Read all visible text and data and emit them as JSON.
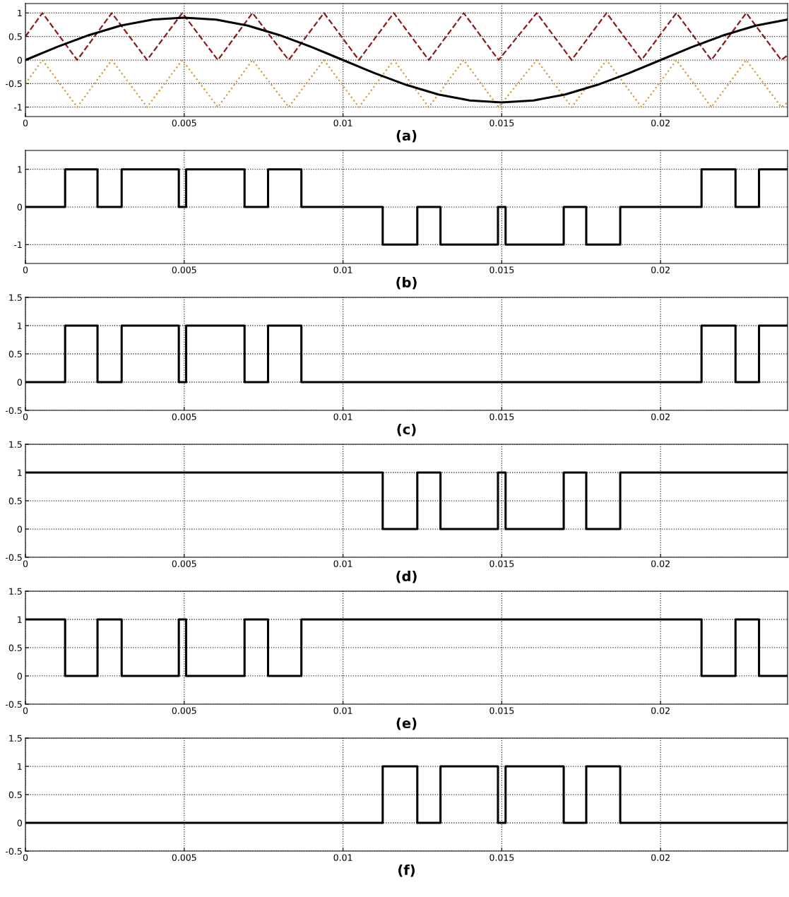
{
  "chart_data": [
    {
      "type": "line",
      "xlabel": "(a)",
      "xlim": [
        0,
        0.024
      ],
      "ylim": [
        -1.2,
        1.2
      ],
      "xticks": [
        0,
        0.005,
        0.01,
        0.015,
        0.02
      ],
      "yticks": [
        -1,
        -0.5,
        0,
        0.5,
        1
      ],
      "grid": true,
      "series": [
        {
          "color": "#8b1a1a",
          "line_style": "dashed",
          "x": [
            0,
            0.000535,
            0.00163,
            0.00272,
            0.00383,
            0.00494,
            0.00606,
            0.00715,
            0.00829,
            0.0094,
            0.0105,
            0.0116,
            0.0127,
            0.0138,
            0.0149,
            0.0161,
            0.0172,
            0.0183,
            0.0194,
            0.0205,
            0.0216,
            0.0227,
            0.0238,
            0.024
          ],
          "values": [
            0.5,
            1,
            0,
            1,
            0,
            1,
            0,
            1,
            0,
            1,
            0,
            1,
            0,
            1,
            0,
            1,
            0,
            1,
            0,
            1,
            0,
            1,
            0,
            0.1
          ]
        },
        {
          "color": "#d49a3a",
          "line_style": "dotted",
          "x": [
            0,
            0.000535,
            0.00163,
            0.00272,
            0.00383,
            0.00494,
            0.00606,
            0.00715,
            0.00829,
            0.0094,
            0.0105,
            0.0116,
            0.0127,
            0.0138,
            0.0149,
            0.0161,
            0.0172,
            0.0183,
            0.0194,
            0.0205,
            0.0216,
            0.0227,
            0.0238,
            0.024
          ],
          "values": [
            -0.5,
            0,
            -1,
            0,
            -1,
            0,
            -1,
            0,
            -1,
            0,
            -1,
            0,
            -1,
            0,
            -1,
            0,
            -1,
            0,
            -1,
            0,
            -1,
            0,
            -1,
            -0.9
          ]
        },
        {
          "color": "#000000",
          "line_style": "solid",
          "x": [
            0,
            0.001,
            0.002,
            0.003,
            0.004,
            0.005,
            0.006,
            0.007,
            0.008,
            0.009,
            0.01,
            0.011,
            0.012,
            0.013,
            0.014,
            0.015,
            0.016,
            0.017,
            0.018,
            0.019,
            0.02,
            0.021,
            0.022,
            0.023,
            0.024
          ],
          "values": [
            0,
            0.28,
            0.53,
            0.73,
            0.86,
            0.9,
            0.86,
            0.73,
            0.53,
            0.28,
            0,
            -0.28,
            -0.53,
            -0.73,
            -0.86,
            -0.9,
            -0.86,
            -0.73,
            -0.53,
            -0.28,
            0,
            0.28,
            0.53,
            0.73,
            0.86
          ]
        }
      ]
    },
    {
      "type": "step",
      "xlabel": "(b)",
      "xlim": [
        0,
        0.024
      ],
      "ylim": [
        -1.5,
        1.5
      ],
      "xticks": [
        0,
        0.005,
        0.01,
        0.015,
        0.02
      ],
      "yticks": [
        -1,
        0,
        1
      ],
      "grid": true,
      "series": [
        {
          "color": "#000000",
          "x": [
            0,
            0.00125,
            0.00227,
            0.00303,
            0.00483,
            0.00506,
            0.0069,
            0.00764,
            0.00869,
            0.01125,
            0.01234,
            0.01307,
            0.01488,
            0.01512,
            0.01695,
            0.01766,
            0.01873,
            0.02129,
            0.02236,
            0.0231,
            0.024
          ],
          "values": [
            0,
            1,
            0,
            1,
            0,
            1,
            0,
            1,
            0,
            -1,
            0,
            -1,
            0,
            -1,
            0,
            -1,
            0,
            1,
            0,
            1,
            1
          ]
        }
      ]
    },
    {
      "type": "step",
      "xlabel": "(c)",
      "xlim": [
        0,
        0.024
      ],
      "ylim": [
        -0.5,
        1.5
      ],
      "xticks": [
        0,
        0.005,
        0.01,
        0.015,
        0.02
      ],
      "yticks": [
        -0.5,
        0,
        0.5,
        1,
        1.5
      ],
      "grid": true,
      "series": [
        {
          "color": "#000000",
          "x": [
            0,
            0.00125,
            0.00227,
            0.00303,
            0.00483,
            0.00506,
            0.0069,
            0.00764,
            0.00869,
            0.02129,
            0.02236,
            0.0231,
            0.024
          ],
          "values": [
            0,
            1,
            0,
            1,
            0,
            1,
            0,
            1,
            0,
            1,
            0,
            1,
            1
          ]
        }
      ]
    },
    {
      "type": "step",
      "xlabel": "(d)",
      "xlim": [
        0,
        0.024
      ],
      "ylim": [
        -0.5,
        1.5
      ],
      "xticks": [
        0,
        0.005,
        0.01,
        0.015,
        0.02
      ],
      "yticks": [
        -0.5,
        0,
        0.5,
        1,
        1.5
      ],
      "grid": true,
      "series": [
        {
          "color": "#000000",
          "x": [
            0,
            0.01125,
            0.01234,
            0.01307,
            0.01488,
            0.01512,
            0.01695,
            0.01766,
            0.01873,
            0.024
          ],
          "values": [
            1,
            0,
            1,
            0,
            1,
            0,
            1,
            0,
            1,
            1
          ]
        }
      ]
    },
    {
      "type": "step",
      "xlabel": "(e)",
      "xlim": [
        0,
        0.024
      ],
      "ylim": [
        -0.5,
        1.5
      ],
      "xticks": [
        0,
        0.005,
        0.01,
        0.015,
        0.02
      ],
      "yticks": [
        -0.5,
        0,
        0.5,
        1,
        1.5
      ],
      "grid": true,
      "series": [
        {
          "color": "#000000",
          "x": [
            0,
            0.00125,
            0.00227,
            0.00303,
            0.00483,
            0.00506,
            0.0069,
            0.00764,
            0.00869,
            0.02129,
            0.02236,
            0.0231,
            0.024
          ],
          "values": [
            1,
            0,
            1,
            0,
            1,
            0,
            1,
            0,
            1,
            0,
            1,
            0,
            0
          ]
        }
      ]
    },
    {
      "type": "step",
      "xlabel": "(f)",
      "xlim": [
        0,
        0.024
      ],
      "ylim": [
        -0.5,
        1.5
      ],
      "xticks": [
        0,
        0.005,
        0.01,
        0.015,
        0.02
      ],
      "yticks": [
        -0.5,
        0,
        0.5,
        1,
        1.5
      ],
      "grid": true,
      "series": [
        {
          "color": "#000000",
          "x": [
            0,
            0.01125,
            0.01234,
            0.01307,
            0.01488,
            0.01512,
            0.01695,
            0.01766,
            0.01873,
            0.024
          ],
          "values": [
            0,
            1,
            0,
            1,
            0,
            1,
            0,
            1,
            0,
            0
          ]
        }
      ]
    }
  ]
}
